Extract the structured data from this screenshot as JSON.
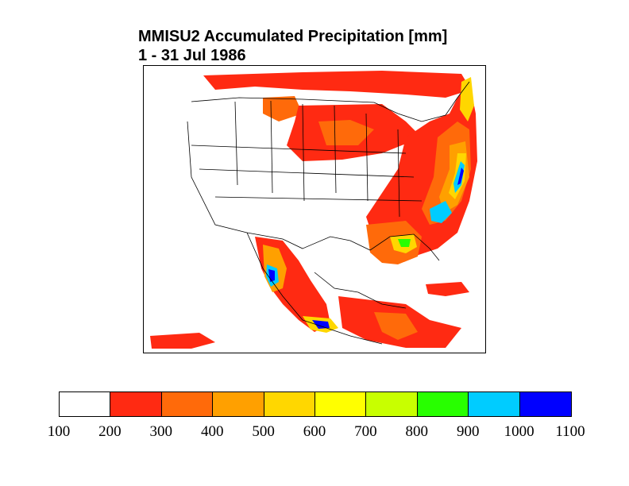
{
  "title": {
    "line1": "MMISU2 Accumulated Precipitation [mm]",
    "line2": "1 - 31 Jul 1986"
  },
  "legend": {
    "levels": [
      "100",
      "200",
      "300",
      "400",
      "500",
      "600",
      "700",
      "800",
      "900",
      "1000",
      "1100"
    ],
    "colors": [
      "#ffffff",
      "#ff2a12",
      "#ff6a0a",
      "#ffa000",
      "#ffd700",
      "#ffff00",
      "#c8ff00",
      "#28ff00",
      "#00ccff",
      "#0000ff"
    ]
  }
}
